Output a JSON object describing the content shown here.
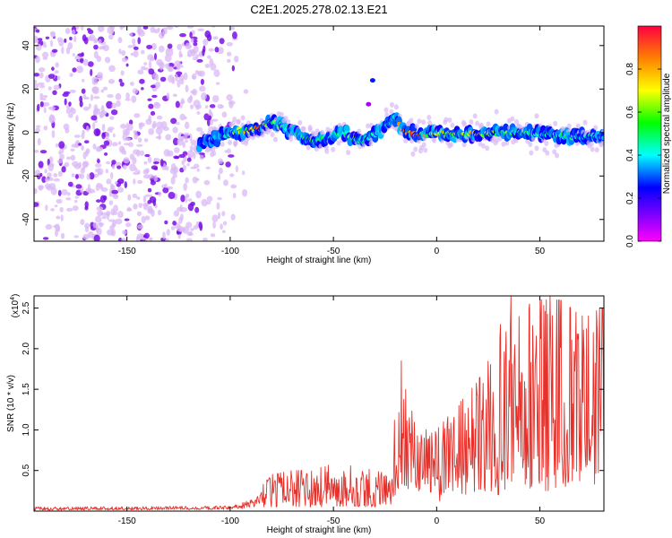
{
  "title": "C2E1.2025.278.02.13.E21",
  "colors": {
    "axis": "#000000",
    "snr_line": "#e8302a",
    "scatter_light": "#d9b8f5",
    "scatter_dark": "#7a0fe6"
  },
  "chart_data": [
    {
      "type": "heatmap",
      "name": "spectrogram",
      "xlabel": "Height of straight line (km)",
      "ylabel": "Frequency (Hz)",
      "xlim": [
        -195,
        81
      ],
      "ylim": [
        -50,
        49
      ],
      "xticks": [
        -150,
        -100,
        -50,
        0,
        50
      ],
      "xtick_labels": [
        "-150",
        "-100",
        "-50",
        "0",
        "50"
      ],
      "yticks": [
        -40,
        -20,
        0,
        20,
        40
      ],
      "ytick_labels": [
        "-40",
        "-20",
        "0",
        "20",
        "40"
      ],
      "colorbar": {
        "label": "Normalized spectral amplitude",
        "range": [
          0,
          1
        ],
        "ticks": [
          0.0,
          0.2,
          0.4,
          0.6,
          0.8
        ],
        "tick_labels": [
          "0.0",
          "0.2",
          "0.4",
          "0.6",
          "0.8"
        ],
        "colormap": [
          "#ff00ff",
          "#8000ff",
          "#0000ff",
          "#00ffff",
          "#00ff00",
          "#ffff00",
          "#ff8000",
          "#ff0000"
        ]
      },
      "noise_region": {
        "x_range": [
          -195,
          -100
        ],
        "freq_range": [
          -50,
          49
        ],
        "amplitude": [
          0.05,
          0.2
        ]
      },
      "ridge": {
        "x": [
          -115,
          -105,
          -98,
          -90,
          -85,
          -80,
          -75,
          -70,
          -65,
          -60,
          -55,
          -50,
          -45,
          -40,
          -35,
          -30,
          -25,
          -20,
          -17,
          -14,
          -10,
          -5,
          0,
          10,
          20,
          30,
          40,
          50,
          60,
          70,
          81
        ],
        "freq": [
          -5,
          -2,
          0,
          1,
          2,
          5,
          3,
          1,
          -2,
          -4,
          -3,
          -1,
          0,
          -3,
          -4,
          -1,
          3,
          7,
          2,
          0,
          -1,
          -1,
          0,
          -1,
          -1,
          0,
          0,
          -1,
          -1,
          -2,
          -2
        ],
        "amplitude": [
          0.3,
          0.45,
          0.6,
          0.85,
          0.9,
          0.7,
          0.55,
          0.5,
          0.55,
          0.6,
          0.5,
          0.45,
          0.55,
          0.6,
          0.5,
          0.45,
          0.4,
          0.5,
          0.95,
          0.9,
          0.95,
          0.8,
          0.7,
          0.75,
          0.7,
          0.65,
          0.6,
          0.55,
          0.5,
          0.45,
          0.4
        ]
      },
      "outliers": [
        {
          "x": -31,
          "freq": 24,
          "amplitude": 0.3
        },
        {
          "x": -33,
          "freq": 13,
          "amplitude": 0.1
        }
      ]
    },
    {
      "type": "line",
      "name": "snr",
      "xlabel": "Height of straight line (km)",
      "ylabel": "SNR (10 * v/v)",
      "yscale_label": "(x10^4)",
      "xlim": [
        -195,
        81
      ],
      "ylim": [
        0,
        2.65
      ],
      "xticks": [
        -150,
        -100,
        -50,
        0,
        50
      ],
      "xtick_labels": [
        "-150",
        "-100",
        "-50",
        "0",
        "50"
      ],
      "yticks": [
        0.5,
        1.0,
        1.5,
        2.0,
        2.5
      ],
      "ytick_labels": [
        "0.5",
        "1.0",
        "1.5",
        "2.0",
        "2.5"
      ],
      "envelope": {
        "x": [
          -195,
          -100,
          -88,
          -85,
          -80,
          -70,
          -60,
          -50,
          -40,
          -30,
          -22,
          -20,
          -15,
          -10,
          -5,
          0,
          10,
          20,
          30,
          40,
          50,
          60,
          70,
          81
        ],
        "y_low": [
          0.01,
          0.02,
          0.04,
          0.05,
          0.05,
          0.05,
          0.05,
          0.05,
          0.05,
          0.05,
          0.08,
          0.2,
          0.3,
          0.2,
          0.3,
          0.1,
          0.2,
          0.2,
          0.2,
          0.3,
          0.2,
          0.3,
          0.3,
          0.3
        ],
        "y_high": [
          0.05,
          0.06,
          0.15,
          0.3,
          0.45,
          0.5,
          0.5,
          0.6,
          0.55,
          0.5,
          0.45,
          1.3,
          1.5,
          1.2,
          1.0,
          1.0,
          1.3,
          1.6,
          2.1,
          2.4,
          2.6,
          2.6,
          2.4,
          2.5
        ]
      },
      "peaks": [
        {
          "x": -17,
          "y": 1.85
        },
        {
          "x": 31,
          "y": 2.3
        },
        {
          "x": 36,
          "y": 2.65
        },
        {
          "x": 45,
          "y": 2.55
        },
        {
          "x": 55,
          "y": 2.65
        },
        {
          "x": 59,
          "y": 2.6
        },
        {
          "x": 76,
          "y": 2.2
        },
        {
          "x": 79,
          "y": 2.5
        }
      ]
    }
  ]
}
